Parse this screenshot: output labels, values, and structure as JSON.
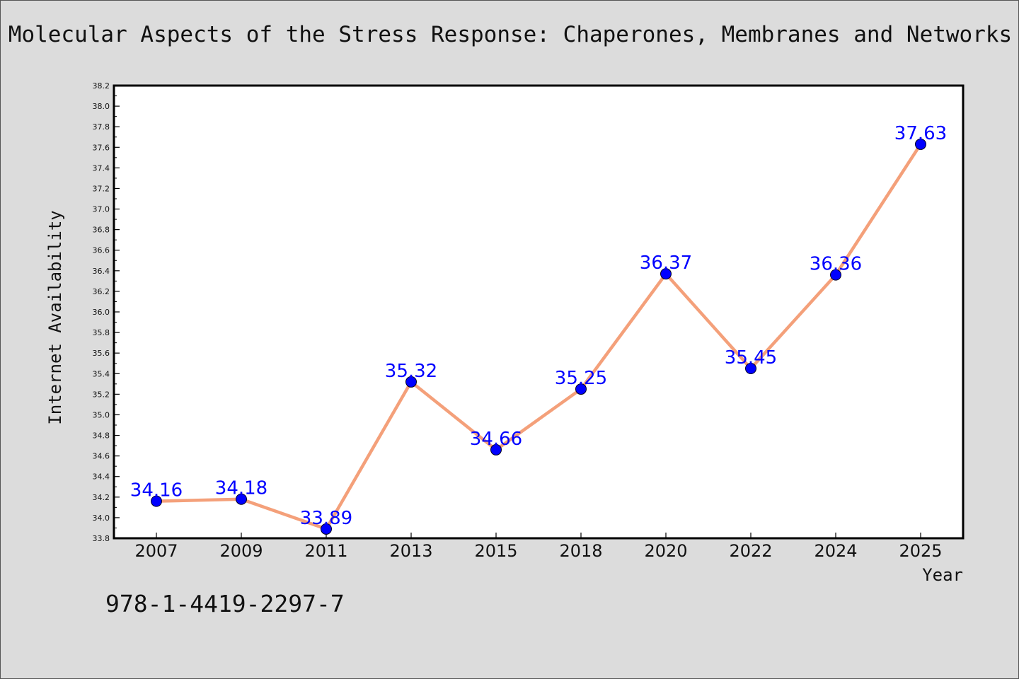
{
  "chart_data": {
    "type": "line",
    "title": "Molecular Aspects of the Stress Response: Chaperones, Membranes and Networks",
    "xlabel": "Year",
    "ylabel": "Internet Availability",
    "categories": [
      "2007",
      "2009",
      "2011",
      "2013",
      "2015",
      "2018",
      "2020",
      "2022",
      "2024",
      "2025"
    ],
    "series": [
      {
        "values": [
          34.16,
          34.18,
          33.89,
          35.32,
          34.66,
          35.25,
          36.37,
          35.45,
          36.36,
          37.63
        ],
        "labels": [
          "34.16",
          "34.18",
          "33.89",
          "35.32",
          "34.66",
          "35.25",
          "36.37",
          "35.45",
          "36.36",
          "37.63"
        ]
      }
    ],
    "ylim": [
      33.8,
      38.2
    ],
    "yticks": [
      "33.8",
      "34.0",
      "34.2",
      "34.4",
      "34.6",
      "34.8",
      "35.0",
      "35.2",
      "35.4",
      "35.6",
      "35.8",
      "36.0",
      "36.2",
      "36.4",
      "36.6",
      "36.8",
      "37.0",
      "37.2",
      "37.4",
      "37.6",
      "37.8",
      "38.0",
      "38.2"
    ],
    "grid": false,
    "legend": "none",
    "colors": {
      "line": "#f4a07a",
      "marker": "#0000ff",
      "label": "#0000ff",
      "background": "#dcdcdc",
      "plot_background": "#ffffff"
    }
  },
  "footer": {
    "isbn": "978-1-4419-2297-7"
  }
}
